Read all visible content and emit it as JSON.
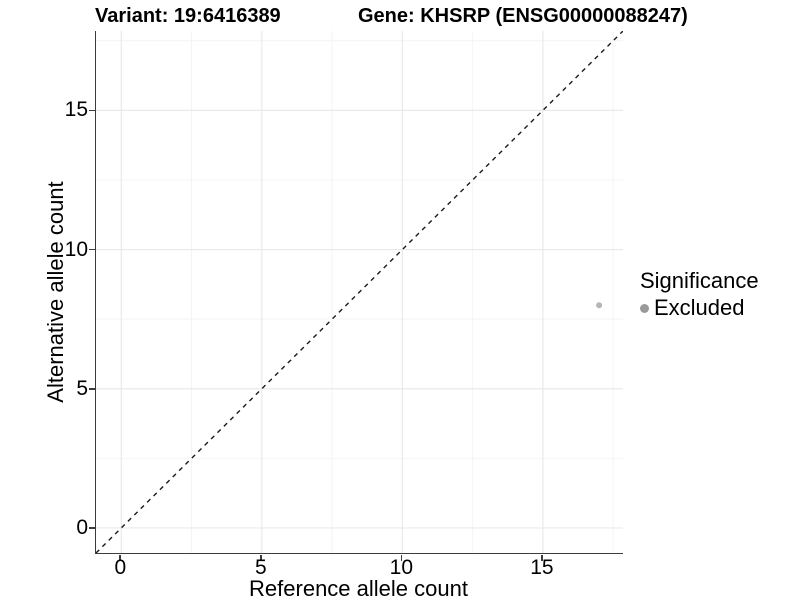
{
  "chart_data": {
    "type": "scatter",
    "title_variant": "Variant: 19:6416389",
    "title_gene": "Gene: KHSRP (ENSG00000088247)",
    "xlabel": "Reference allele count",
    "ylabel": "Alternative allele count",
    "xlim": [
      -0.9,
      17.85
    ],
    "ylim": [
      -0.9,
      17.85
    ],
    "x_major_ticks": [
      0,
      5,
      10,
      15
    ],
    "y_major_ticks": [
      0,
      5,
      10,
      15
    ],
    "x_minor_ticks": [
      2.5,
      7.5,
      12.5,
      17.5
    ],
    "y_minor_ticks": [
      2.5,
      7.5,
      12.5,
      17.5
    ],
    "grid": true,
    "reference_line": {
      "type": "identity",
      "equation": "y = x",
      "style": "dashed",
      "color": "#1a1a1a"
    },
    "series": [
      {
        "name": "Excluded",
        "color": "#b5b5b5",
        "points": [
          {
            "x": 17,
            "y": 8
          }
        ]
      }
    ],
    "legend": {
      "title": "Significance",
      "position": "right",
      "items": [
        {
          "label": "Excluded",
          "color": "#9a9a9a"
        }
      ]
    },
    "style": {
      "background": "#ffffff",
      "axis_color": "#3c3c3c",
      "grid_major_color": "#e9e9e9",
      "grid_minor_color": "#f4f4f4",
      "point_radius": 3,
      "legend_dot_radius": 4.5
    }
  }
}
